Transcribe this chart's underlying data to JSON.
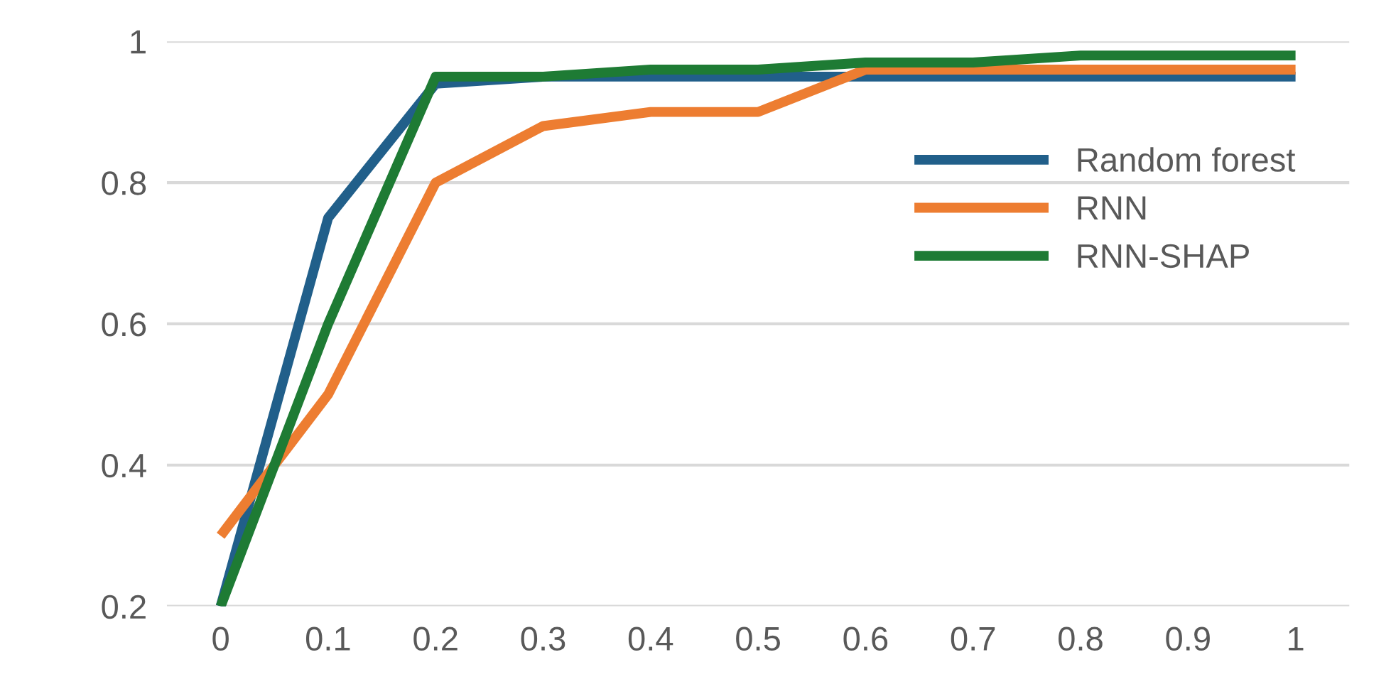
{
  "chart_data": {
    "type": "line",
    "categories": [
      "0",
      "0.1",
      "0.2",
      "0.3",
      "0.4",
      "0.5",
      "0.6",
      "0.7",
      "0.8",
      "0.9",
      "1"
    ],
    "series": [
      {
        "name": "Random forest",
        "color": "#215f8a",
        "values": [
          0.2,
          0.75,
          0.94,
          0.95,
          0.95,
          0.95,
          0.95,
          0.95,
          0.95,
          0.95,
          0.95
        ]
      },
      {
        "name": "RNN",
        "color": "#ed7d31",
        "values": [
          0.3,
          0.5,
          0.8,
          0.88,
          0.9,
          0.9,
          0.96,
          0.96,
          0.96,
          0.96,
          0.96
        ]
      },
      {
        "name": "RNN-SHAP",
        "color": "#1e7b34",
        "values": [
          0.2,
          0.6,
          0.95,
          0.95,
          0.96,
          0.96,
          0.97,
          0.97,
          0.98,
          0.98,
          0.98
        ]
      }
    ],
    "ylim": [
      0.2,
      1
    ],
    "yticks": [
      0.2,
      0.4,
      0.6,
      0.8,
      1
    ],
    "grid": "y",
    "legend": "right",
    "marker": "none",
    "line_style": "solid"
  }
}
